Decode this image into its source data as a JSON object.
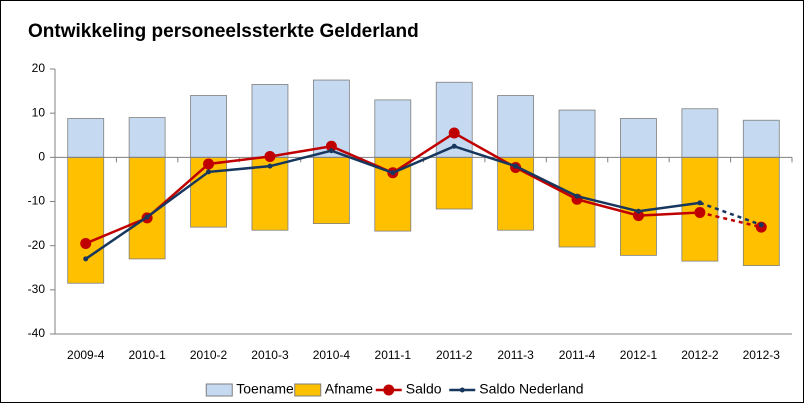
{
  "chart_data": {
    "type": "bar-line",
    "title": "Ontwikkeling personeelssterkte Gelderland",
    "categories": [
      "2009-4",
      "2010-1",
      "2010-2",
      "2010-3",
      "2010-4",
      "2011-1",
      "2011-2",
      "2011-3",
      "2011-4",
      "2012-1",
      "2012-2",
      "2012-3"
    ],
    "series": [
      {
        "name": "Toename",
        "kind": "bar",
        "color": "#c5d9f1",
        "values": [
          8.8,
          9,
          14,
          16.5,
          17.5,
          13,
          17,
          14,
          10.7,
          8.8,
          11,
          8.4
        ]
      },
      {
        "name": "Afname",
        "kind": "bar",
        "color": "#ffc000",
        "values": [
          -28.5,
          -23,
          -15.8,
          -16.5,
          -15,
          -16.7,
          -11.7,
          -16.5,
          -20.3,
          -22.2,
          -23.5,
          -24.5
        ]
      },
      {
        "name": "Saldo",
        "kind": "line",
        "marker": "large",
        "color": "#c00000",
        "values": [
          -19.5,
          -13.7,
          -1.5,
          0.2,
          2.5,
          -3.5,
          5.5,
          -2.3,
          -9.5,
          -13.2,
          -12.5,
          -15.8
        ]
      },
      {
        "name": "Saldo Nederland",
        "kind": "line",
        "marker": "small",
        "color": "#17375e",
        "values": [
          -23,
          -13.5,
          -3.3,
          -2,
          1.5,
          -3.5,
          2.5,
          -2,
          -8.8,
          -12.2,
          -10.3,
          -15.3
        ]
      }
    ],
    "last_segment_dashed": true,
    "ylim": [
      -40,
      20
    ],
    "yticks": [
      -40,
      -30,
      -20,
      -10,
      0,
      10,
      20
    ],
    "grid": false,
    "legend": "bottom"
  }
}
